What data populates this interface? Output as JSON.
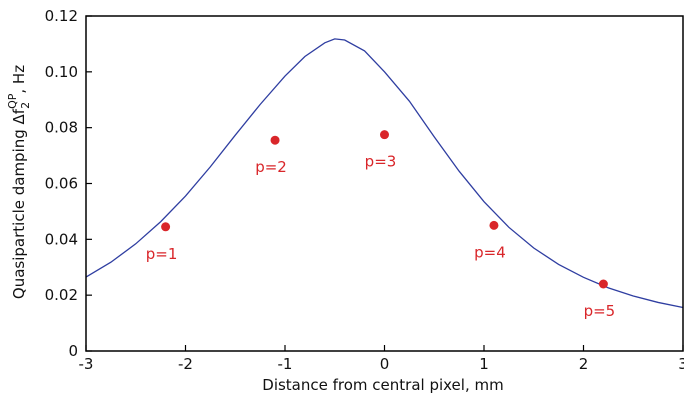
{
  "chart_data": {
    "type": "scatter",
    "xlabel": "Distance from central pixel, mm",
    "ylabel": {
      "prefix": "Quasiparticle damping Δf",
      "subscript": "2",
      "superscript": "QP",
      "suffix": ", Hz"
    },
    "xlim": [
      -3,
      3
    ],
    "ylim": [
      0,
      0.12
    ],
    "x_ticks": [
      -3,
      -2,
      -1,
      0,
      1,
      2,
      3
    ],
    "x_tick_labels": [
      "-3",
      "-2",
      "-1",
      "0",
      "1",
      "2",
      "3"
    ],
    "y_ticks": [
      0,
      0.02,
      0.04,
      0.06,
      0.08,
      0.1,
      0.12
    ],
    "y_tick_labels": [
      "0",
      "0.02",
      "0.04",
      "0.06",
      "0.08",
      "0.10",
      "0.12"
    ],
    "grid": false,
    "points": [
      {
        "label": "p=1",
        "x": -2.2,
        "y": 0.0445
      },
      {
        "label": "p=2",
        "x": -1.1,
        "y": 0.0755
      },
      {
        "label": "p=3",
        "x": 0.0,
        "y": 0.0775
      },
      {
        "label": "p=4",
        "x": 1.1,
        "y": 0.045
      },
      {
        "label": "p=5",
        "x": 2.2,
        "y": 0.024
      }
    ],
    "curve": {
      "x": [
        -3.0,
        -2.75,
        -2.5,
        -2.25,
        -2.0,
        -1.75,
        -1.5,
        -1.25,
        -1.0,
        -0.8,
        -0.6,
        -0.5,
        -0.4,
        -0.2,
        0.0,
        0.25,
        0.5,
        0.75,
        1.0,
        1.25,
        1.5,
        1.75,
        2.0,
        2.25,
        2.5,
        2.75,
        3.0
      ],
      "y": [
        0.0265,
        0.0318,
        0.0384,
        0.0463,
        0.0555,
        0.066,
        0.0773,
        0.0883,
        0.0985,
        0.1055,
        0.1104,
        0.1118,
        0.1114,
        0.1075,
        0.1,
        0.0895,
        0.0767,
        0.0644,
        0.0535,
        0.0443,
        0.0369,
        0.031,
        0.0264,
        0.0226,
        0.0197,
        0.0174,
        0.0156
      ]
    },
    "colors": {
      "points": "#d9262a",
      "curve": "#2f3ea1",
      "axis": "#000000"
    }
  }
}
